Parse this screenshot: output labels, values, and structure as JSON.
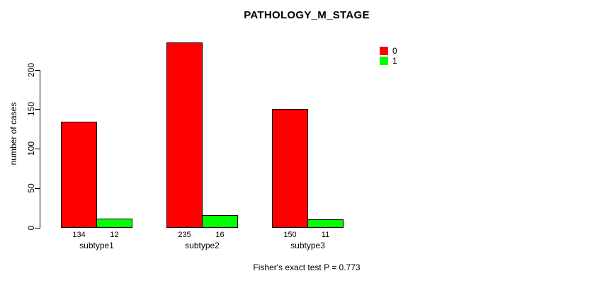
{
  "chart_data": {
    "type": "bar",
    "title": "PATHOLOGY_M_STAGE",
    "categories": [
      "subtype1",
      "subtype2",
      "subtype3"
    ],
    "series": [
      {
        "name": "0",
        "color": "#ff0000",
        "values": [
          134,
          235,
          150
        ]
      },
      {
        "name": "1",
        "color": "#00ff00",
        "values": [
          12,
          16,
          11
        ]
      }
    ],
    "xlabel": "",
    "ylabel": "number of cases",
    "yticks": [
      0,
      50,
      100,
      150,
      200
    ],
    "ylim": [
      0,
      235
    ],
    "grid": false,
    "legend_position": "top-right",
    "bar_value_labels": true,
    "annotation": "Fisher's exact test P = 0.773"
  },
  "colors": {
    "series_0": "#ff0000",
    "series_1": "#00ff00",
    "axis": "#000000",
    "background": "#ffffff"
  }
}
